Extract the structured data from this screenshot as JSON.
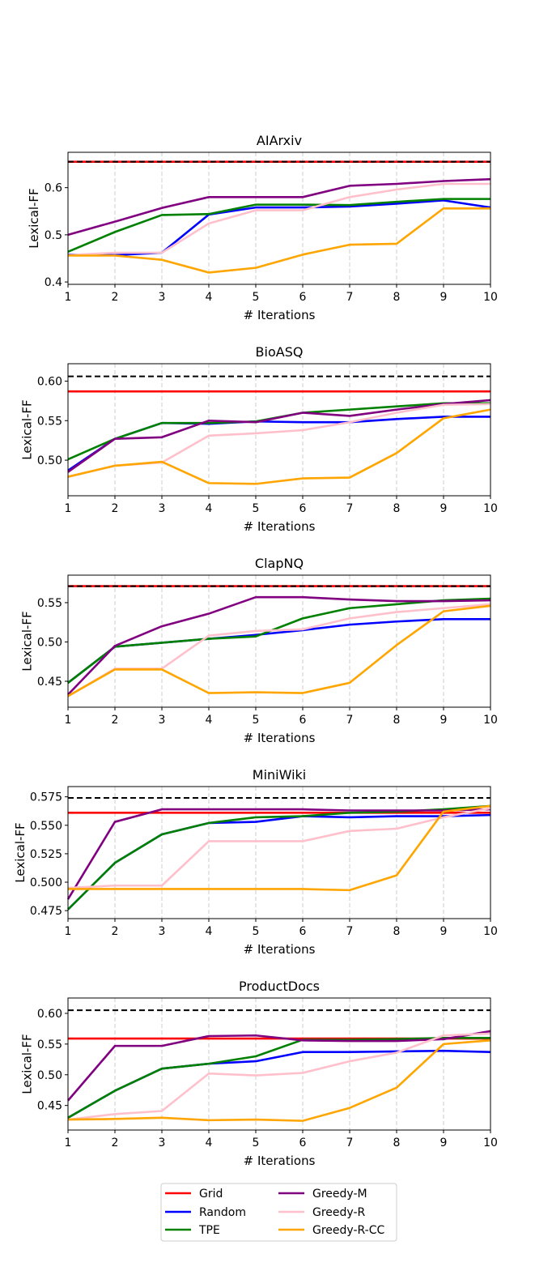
{
  "legend": {
    "entries": [
      "Grid",
      "Greedy-M",
      "Random",
      "Greedy-R",
      "TPE",
      "Greedy-R-CC"
    ]
  },
  "colors": {
    "Grid": "#ff0000",
    "Random": "#0000ff",
    "TPE": "#008000",
    "Greedy-M": "#800080",
    "Greedy-R": "#ffc0cb",
    "Greedy-R-CC": "#ffa500",
    "upper_bound": "#000000"
  },
  "chart_data": [
    {
      "type": "line",
      "title": "AIArxiv",
      "xlabel": "# Iterations",
      "ylabel": "Lexical-FF",
      "x": [
        1,
        2,
        3,
        4,
        5,
        6,
        7,
        8,
        9,
        10
      ],
      "xlim": [
        1,
        10
      ],
      "ylim": [
        0.395,
        0.675
      ],
      "yticks": [
        "0.4",
        "0.5",
        "0.6"
      ],
      "yticks_values": [
        0.4,
        0.5,
        0.6
      ],
      "grid_x": true,
      "dashed_line": 0.655,
      "series": [
        {
          "name": "Grid",
          "values": [
            0.655,
            0.655,
            0.655,
            0.655,
            0.655,
            0.655,
            0.655,
            0.655,
            0.655,
            0.655
          ]
        },
        {
          "name": "Random",
          "values": [
            0.458,
            0.457,
            0.462,
            0.543,
            0.558,
            0.558,
            0.56,
            0.566,
            0.573,
            0.558
          ]
        },
        {
          "name": "TPE",
          "values": [
            0.464,
            0.506,
            0.542,
            0.544,
            0.564,
            0.564,
            0.563,
            0.57,
            0.576,
            0.576
          ]
        },
        {
          "name": "Greedy-M",
          "values": [
            0.5,
            0.528,
            0.557,
            0.58,
            0.58,
            0.58,
            0.604,
            0.608,
            0.614,
            0.618
          ]
        },
        {
          "name": "Greedy-R",
          "values": [
            0.457,
            0.462,
            0.462,
            0.524,
            0.552,
            0.552,
            0.58,
            0.596,
            0.608,
            0.608
          ]
        },
        {
          "name": "Greedy-R-CC",
          "values": [
            0.456,
            0.456,
            0.447,
            0.42,
            0.43,
            0.458,
            0.479,
            0.481,
            0.556,
            0.556
          ]
        }
      ]
    },
    {
      "type": "line",
      "title": "BioASQ",
      "xlabel": "# Iterations",
      "ylabel": "Lexical-FF",
      "x": [
        1,
        2,
        3,
        4,
        5,
        6,
        7,
        8,
        9,
        10
      ],
      "xlim": [
        1,
        10
      ],
      "ylim": [
        0.455,
        0.622
      ],
      "yticks": [
        "0.50",
        "0.55",
        "0.60"
      ],
      "yticks_values": [
        0.5,
        0.55,
        0.6
      ],
      "grid_x": true,
      "dashed_line": 0.606,
      "series": [
        {
          "name": "Grid",
          "values": [
            0.587,
            0.587,
            0.587,
            0.587,
            0.587,
            0.587,
            0.587,
            0.587,
            0.587,
            0.587
          ]
        },
        {
          "name": "Random",
          "values": [
            0.487,
            0.527,
            0.547,
            0.546,
            0.549,
            0.548,
            0.548,
            0.552,
            0.555,
            0.555
          ]
        },
        {
          "name": "TPE",
          "values": [
            0.501,
            0.527,
            0.547,
            0.547,
            0.549,
            0.56,
            0.564,
            0.568,
            0.572,
            0.572
          ]
        },
        {
          "name": "Greedy-M",
          "values": [
            0.485,
            0.527,
            0.529,
            0.55,
            0.548,
            0.56,
            0.556,
            0.564,
            0.571,
            0.576
          ]
        },
        {
          "name": "Greedy-R",
          "values": [
            0.479,
            0.493,
            0.497,
            0.531,
            0.534,
            0.538,
            0.548,
            0.56,
            0.57,
            0.571
          ]
        },
        {
          "name": "Greedy-R-CC",
          "values": [
            0.479,
            0.493,
            0.498,
            0.471,
            0.47,
            0.477,
            0.478,
            0.509,
            0.553,
            0.564
          ]
        }
      ]
    },
    {
      "type": "line",
      "title": "ClapNQ",
      "xlabel": "# Iterations",
      "ylabel": "Lexical-FF",
      "x": [
        1,
        2,
        3,
        4,
        5,
        6,
        7,
        8,
        9,
        10
      ],
      "xlim": [
        1,
        10
      ],
      "ylim": [
        0.417,
        0.585
      ],
      "yticks": [
        "0.45",
        "0.50",
        "0.55"
      ],
      "yticks_values": [
        0.45,
        0.5,
        0.55
      ],
      "grid_x": true,
      "dashed_line": 0.571,
      "series": [
        {
          "name": "Grid",
          "values": [
            0.571,
            0.571,
            0.571,
            0.571,
            0.571,
            0.571,
            0.571,
            0.571,
            0.571,
            0.571
          ]
        },
        {
          "name": "Random",
          "values": [
            0.448,
            0.494,
            0.499,
            0.504,
            0.509,
            0.515,
            0.522,
            0.526,
            0.529,
            0.529
          ]
        },
        {
          "name": "TPE",
          "values": [
            0.448,
            0.494,
            0.499,
            0.504,
            0.507,
            0.53,
            0.543,
            0.548,
            0.553,
            0.555
          ]
        },
        {
          "name": "Greedy-M",
          "values": [
            0.433,
            0.495,
            0.52,
            0.536,
            0.557,
            0.557,
            0.554,
            0.552,
            0.552,
            0.553
          ]
        },
        {
          "name": "Greedy-R",
          "values": [
            0.431,
            0.466,
            0.466,
            0.508,
            0.514,
            0.516,
            0.53,
            0.538,
            0.543,
            0.548
          ]
        },
        {
          "name": "Greedy-R-CC",
          "values": [
            0.431,
            0.465,
            0.465,
            0.435,
            0.436,
            0.435,
            0.448,
            0.496,
            0.539,
            0.546
          ]
        }
      ]
    },
    {
      "type": "line",
      "title": "MiniWiki",
      "xlabel": "# Iterations",
      "ylabel": "Lexical-FF",
      "x": [
        1,
        2,
        3,
        4,
        5,
        6,
        7,
        8,
        9,
        10
      ],
      "xlim": [
        1,
        10
      ],
      "ylim": [
        0.468,
        0.584
      ],
      "yticks": [
        "0.475",
        "0.500",
        "0.525",
        "0.550",
        "0.575"
      ],
      "yticks_values": [
        0.475,
        0.5,
        0.525,
        0.55,
        0.575
      ],
      "grid_x": true,
      "dashed_line": 0.574,
      "series": [
        {
          "name": "Grid",
          "values": [
            0.561,
            0.561,
            0.561,
            0.561,
            0.561,
            0.561,
            0.561,
            0.561,
            0.561,
            0.561
          ]
        },
        {
          "name": "Random",
          "values": [
            0.476,
            0.517,
            0.542,
            0.552,
            0.553,
            0.558,
            0.557,
            0.558,
            0.558,
            0.559
          ]
        },
        {
          "name": "TPE",
          "values": [
            0.476,
            0.517,
            0.542,
            0.552,
            0.557,
            0.558,
            0.561,
            0.562,
            0.564,
            0.567
          ]
        },
        {
          "name": "Greedy-M",
          "values": [
            0.485,
            0.553,
            0.564,
            0.564,
            0.564,
            0.564,
            0.563,
            0.563,
            0.563,
            0.564
          ]
        },
        {
          "name": "Greedy-R",
          "values": [
            0.495,
            0.497,
            0.497,
            0.536,
            0.536,
            0.536,
            0.545,
            0.547,
            0.557,
            0.565
          ]
        },
        {
          "name": "Greedy-R-CC",
          "values": [
            0.494,
            0.494,
            0.494,
            0.494,
            0.494,
            0.494,
            0.493,
            0.506,
            0.562,
            0.567
          ]
        }
      ]
    },
    {
      "type": "line",
      "title": "ProductDocs",
      "xlabel": "# Iterations",
      "ylabel": "Lexical-FF",
      "x": [
        1,
        2,
        3,
        4,
        5,
        6,
        7,
        8,
        9,
        10
      ],
      "xlim": [
        1,
        10
      ],
      "ylim": [
        0.41,
        0.625
      ],
      "yticks": [
        "0.45",
        "0.50",
        "0.55",
        "0.60"
      ],
      "yticks_values": [
        0.45,
        0.5,
        0.55,
        0.6
      ],
      "grid_x": true,
      "dashed_line": 0.605,
      "series": [
        {
          "name": "Grid",
          "values": [
            0.559,
            0.559,
            0.559,
            0.559,
            0.559,
            0.559,
            0.559,
            0.559,
            0.559,
            0.559
          ]
        },
        {
          "name": "Random",
          "values": [
            0.43,
            0.474,
            0.51,
            0.518,
            0.522,
            0.537,
            0.537,
            0.538,
            0.539,
            0.537
          ]
        },
        {
          "name": "TPE",
          "values": [
            0.43,
            0.474,
            0.51,
            0.518,
            0.53,
            0.557,
            0.557,
            0.558,
            0.56,
            0.56
          ]
        },
        {
          "name": "Greedy-M",
          "values": [
            0.458,
            0.547,
            0.547,
            0.563,
            0.564,
            0.556,
            0.555,
            0.555,
            0.558,
            0.571
          ]
        },
        {
          "name": "Greedy-R",
          "values": [
            0.427,
            0.436,
            0.441,
            0.502,
            0.499,
            0.503,
            0.522,
            0.536,
            0.564,
            0.567
          ]
        },
        {
          "name": "Greedy-R-CC",
          "values": [
            0.427,
            0.428,
            0.43,
            0.426,
            0.427,
            0.425,
            0.446,
            0.479,
            0.55,
            0.556
          ]
        }
      ]
    }
  ]
}
